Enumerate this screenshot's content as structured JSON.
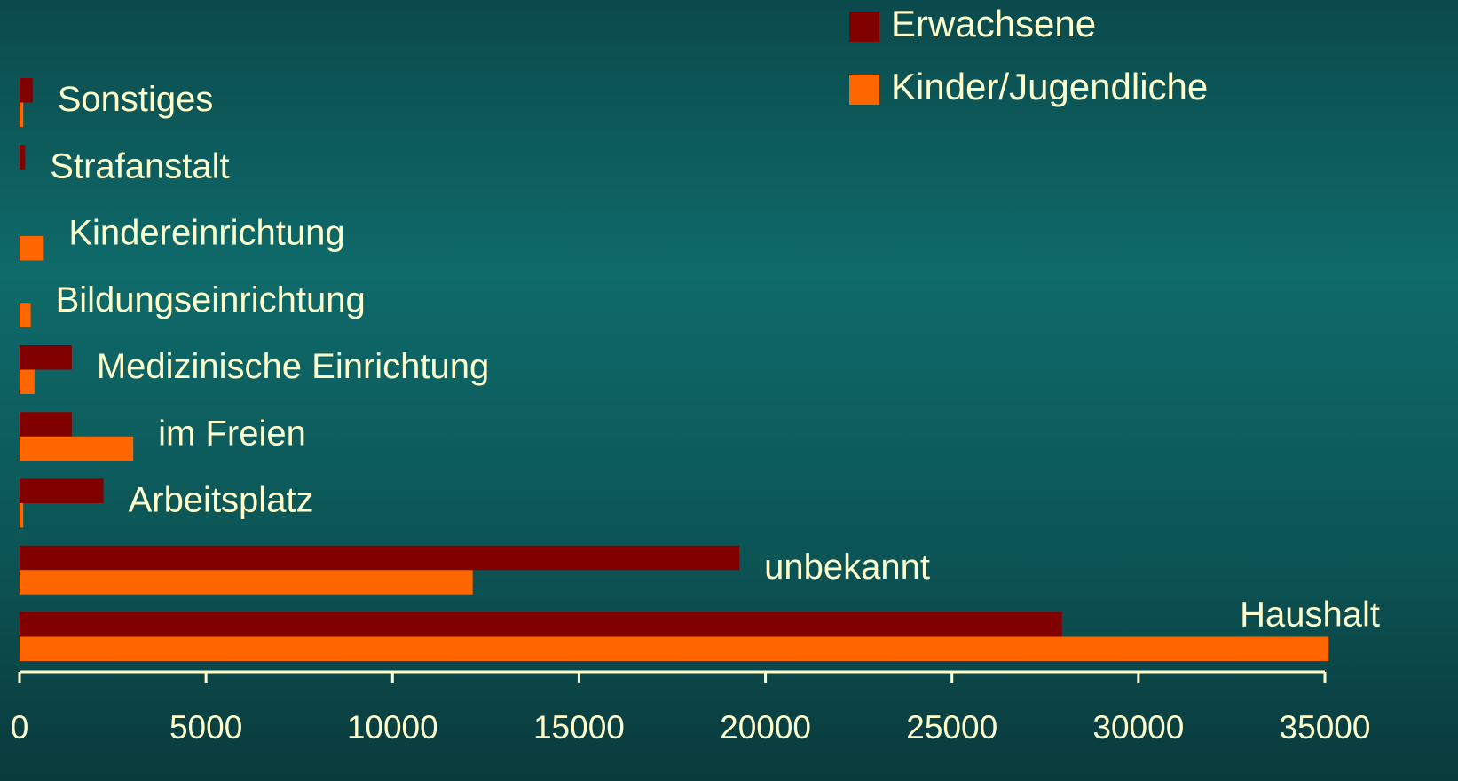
{
  "chart_data": {
    "type": "barh",
    "categories": [
      "Sonstiges",
      "Strafanstalt",
      "Kindereinrichtung",
      "Bildungseinrichtung",
      "Medizinische Einrichtung",
      "im Freien",
      "Arbeitsplatz",
      "unbekannt",
      "Haushalt"
    ],
    "series": [
      {
        "name": "Erwachsene",
        "color": "#800000",
        "values": [
          350,
          150,
          0,
          0,
          1400,
          1400,
          2250,
          19300,
          27950
        ]
      },
      {
        "name": "Kinder/Jugendliche",
        "color": "#ff6600",
        "values": [
          100,
          0,
          650,
          300,
          400,
          3050,
          100,
          12150,
          35100
        ]
      }
    ],
    "xlim": [
      0,
      35000
    ],
    "xticks": [
      0,
      5000,
      10000,
      15000,
      20000,
      25000,
      30000,
      35000
    ],
    "legend": "top-right",
    "grid": false
  }
}
